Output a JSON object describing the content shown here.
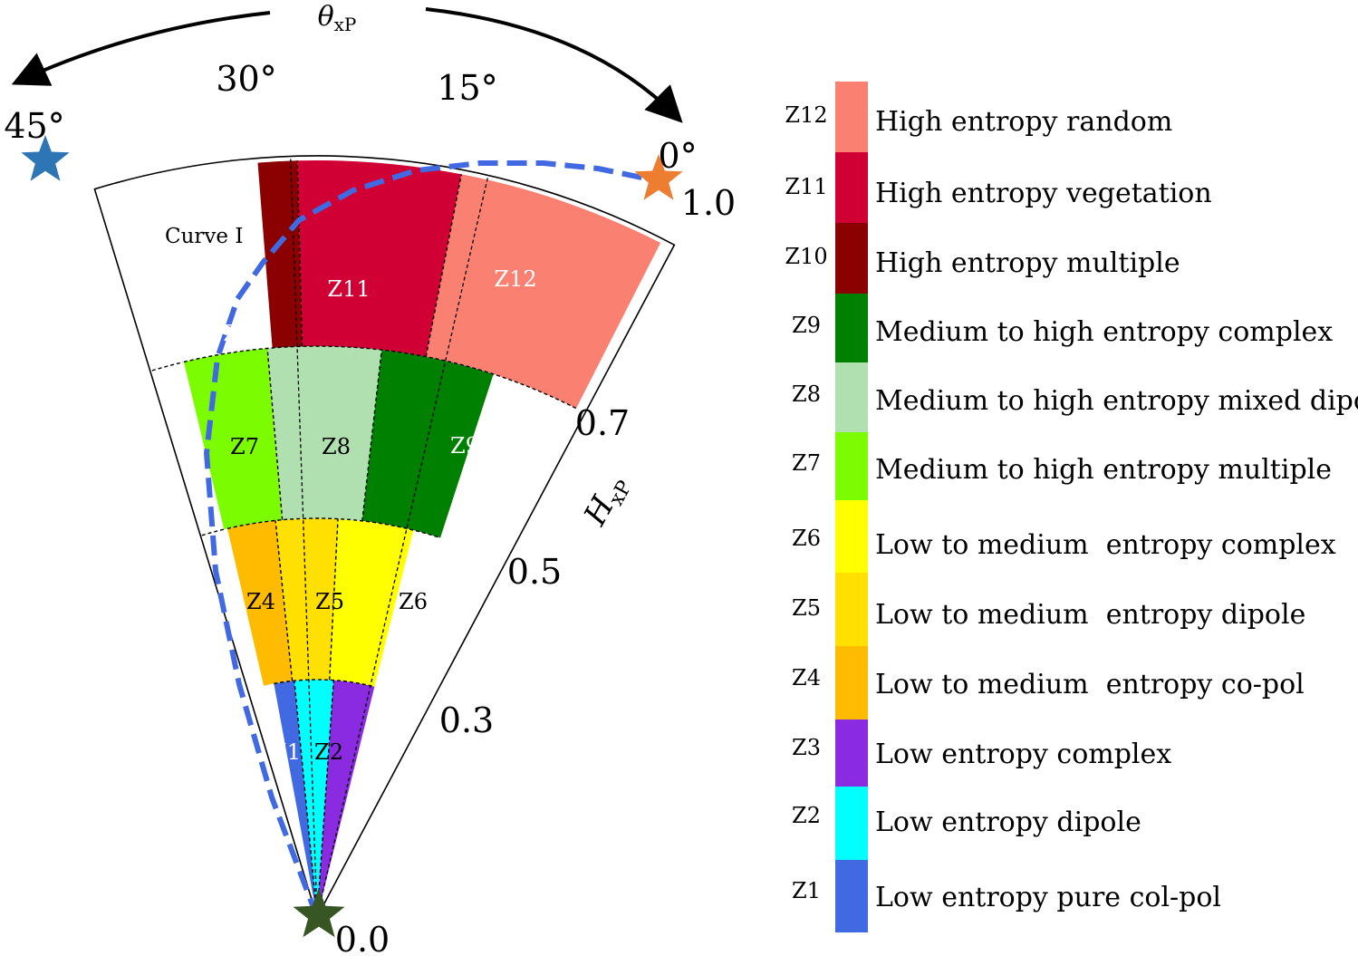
{
  "axis_labels": {
    "theta": "θ",
    "theta_sub": "xP",
    "h": "H",
    "h_sub": "xP"
  },
  "angle_ticks": [
    "45°",
    "30°",
    "15°",
    "0°"
  ],
  "radius_ticks": [
    "0.0",
    "0.3",
    "0.5",
    "0.7",
    "1.0"
  ],
  "curve_label": "Curve I",
  "zones": [
    {
      "id": "Z1",
      "color": "#4169e1",
      "label_color": "#ffffff",
      "description": "Low entropy pure col-pol"
    },
    {
      "id": "Z2",
      "color": "#00ffff",
      "label_color": "#000000",
      "description": "Low entropy dipole"
    },
    {
      "id": "Z3",
      "color": "#8a2be2",
      "label_color": "#ffffff",
      "description": "Low entropy complex"
    },
    {
      "id": "Z4",
      "color": "#ffbb00",
      "label_color": "#000000",
      "description": "Low to medium  entropy co-pol"
    },
    {
      "id": "Z5",
      "color": "#ffe000",
      "label_color": "#000000",
      "description": "Low to medium  entropy dipole"
    },
    {
      "id": "Z6",
      "color": "#ffff00",
      "label_color": "#000000",
      "description": "Low to medium  entropy complex"
    },
    {
      "id": "Z7",
      "color": "#7cfc00",
      "label_color": "#000000",
      "description": "Medium to high entropy multiple"
    },
    {
      "id": "Z8",
      "color": "#b0e0b0",
      "label_color": "#000000",
      "description": "Medium to high entropy mixed dipole"
    },
    {
      "id": "Z9",
      "color": "#008000",
      "label_color": "#ffffff",
      "description": "Medium to high entropy complex"
    },
    {
      "id": "Z10",
      "color": "#8b0000",
      "label_color": "#ffffff",
      "description": "High entropy multiple"
    },
    {
      "id": "Z11",
      "color": "#d10034",
      "label_color": "#ffffff",
      "description": "High entropy vegetation"
    },
    {
      "id": "Z12",
      "color": "#fa8072",
      "label_color": "#ffffff",
      "description": "High entropy random"
    }
  ],
  "markers": {
    "star_45_color": "#2e75b6",
    "star_0_color": "#ed7d31",
    "star_origin_color": "#375623",
    "curve_color": "#4169e1"
  }
}
